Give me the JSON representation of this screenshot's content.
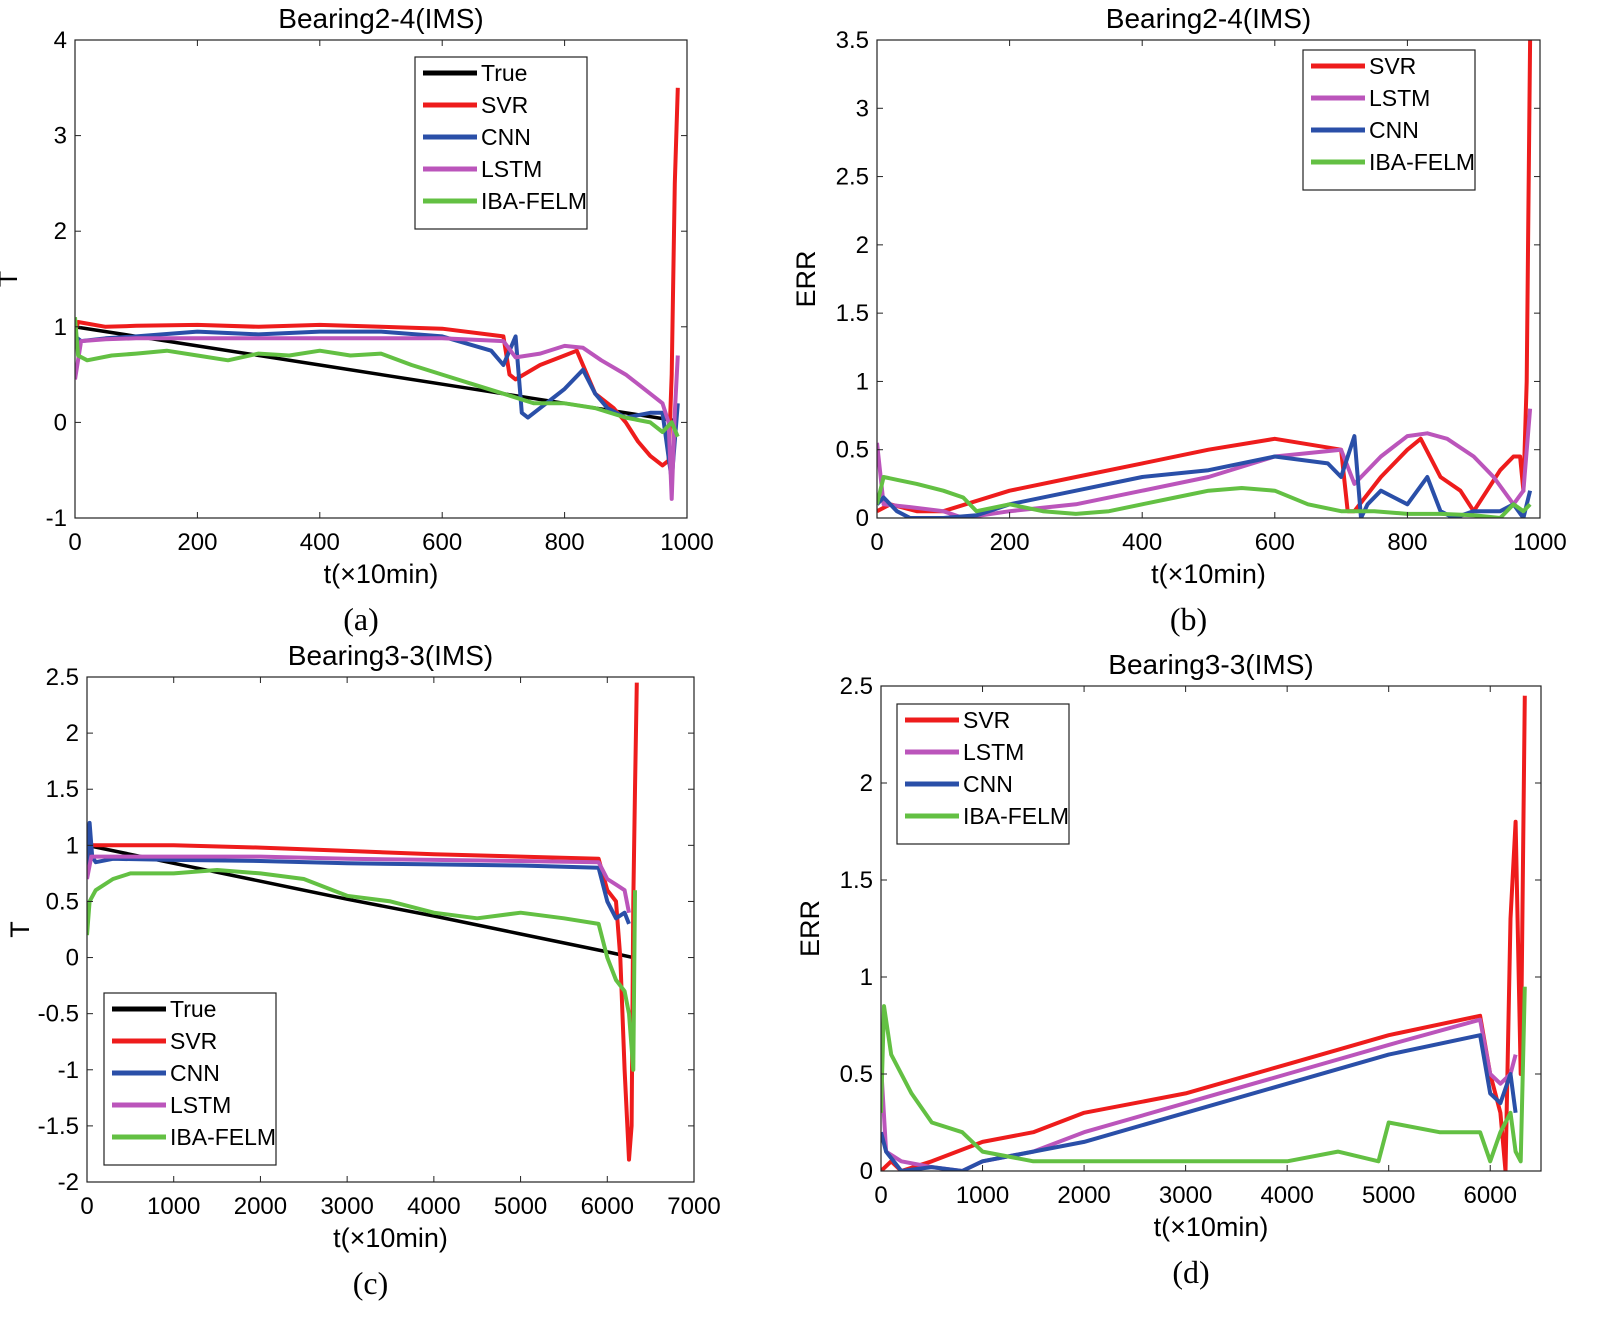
{
  "figure": {
    "colors": {
      "True": "#000000",
      "SVR": "#ee1c1c",
      "CNN": "#2a4fa8",
      "LSTM": "#bb55bb",
      "IBA-FELM": "#63c043"
    }
  },
  "chart_data": [
    {
      "id": "a",
      "caption": "(a)",
      "type": "line",
      "title": "Bearing2-4(IMS)",
      "xlabel": "t(×10min)",
      "ylabel": "T",
      "xlim": [
        0,
        1000
      ],
      "ylim": [
        -1,
        4
      ],
      "xticks": [
        0,
        200,
        400,
        600,
        800,
        1000
      ],
      "yticks": [
        -1,
        0,
        1,
        2,
        3,
        4
      ],
      "legend_position": "top-right",
      "grid": false,
      "series": [
        {
          "name": "True",
          "color": "#000000",
          "x": [
            0,
            200,
            400,
            600,
            800,
            980
          ],
          "y": [
            1.0,
            0.8,
            0.6,
            0.4,
            0.2,
            0.02
          ]
        },
        {
          "name": "SVR",
          "color": "#ee1c1c",
          "x": [
            0,
            5,
            50,
            100,
            200,
            300,
            400,
            500,
            600,
            700,
            710,
            720,
            760,
            800,
            820,
            850,
            880,
            900,
            920,
            940,
            960,
            970,
            975,
            980,
            985
          ],
          "y": [
            0.95,
            1.05,
            1.0,
            1.01,
            1.02,
            1.0,
            1.02,
            1.0,
            0.98,
            0.9,
            0.5,
            0.45,
            0.6,
            0.7,
            0.75,
            0.3,
            0.15,
            0.0,
            -0.2,
            -0.35,
            -0.45,
            -0.4,
            0.5,
            2.5,
            3.5
          ]
        },
        {
          "name": "CNN",
          "color": "#2a4fa8",
          "x": [
            0,
            10,
            50,
            100,
            200,
            300,
            400,
            500,
            600,
            680,
            700,
            720,
            730,
            740,
            760,
            780,
            800,
            830,
            850,
            870,
            900,
            940,
            960,
            975,
            985
          ],
          "y": [
            0.9,
            0.85,
            0.88,
            0.9,
            0.95,
            0.92,
            0.95,
            0.95,
            0.9,
            0.75,
            0.6,
            0.9,
            0.1,
            0.05,
            0.15,
            0.25,
            0.35,
            0.55,
            0.3,
            0.15,
            0.05,
            0.1,
            0.1,
            -0.6,
            0.2
          ]
        },
        {
          "name": "LSTM",
          "color": "#bb55bb",
          "x": [
            0,
            10,
            50,
            100,
            200,
            300,
            400,
            500,
            600,
            700,
            720,
            760,
            800,
            830,
            860,
            900,
            930,
            960,
            970,
            975,
            980,
            985
          ],
          "y": [
            0.45,
            0.85,
            0.87,
            0.88,
            0.88,
            0.88,
            0.88,
            0.88,
            0.88,
            0.85,
            0.68,
            0.72,
            0.8,
            0.78,
            0.65,
            0.5,
            0.35,
            0.2,
            0.0,
            -0.8,
            0.1,
            0.7
          ]
        },
        {
          "name": "IBA-FELM",
          "color": "#63c043",
          "x": [
            0,
            5,
            20,
            60,
            100,
            150,
            200,
            250,
            300,
            350,
            400,
            450,
            500,
            550,
            600,
            650,
            700,
            750,
            800,
            850,
            900,
            940,
            960,
            975,
            985
          ],
          "y": [
            1.1,
            0.7,
            0.65,
            0.7,
            0.72,
            0.75,
            0.7,
            0.65,
            0.72,
            0.7,
            0.75,
            0.7,
            0.72,
            0.6,
            0.5,
            0.4,
            0.3,
            0.2,
            0.2,
            0.15,
            0.05,
            0.0,
            -0.1,
            0.0,
            -0.15
          ]
        }
      ]
    },
    {
      "id": "b",
      "caption": "(b)",
      "type": "line",
      "title": "Bearing2-4(IMS)",
      "xlabel": "t(×10min)",
      "ylabel": "ERR",
      "xlim": [
        0,
        1000
      ],
      "ylim": [
        0,
        3.5
      ],
      "xticks": [
        0,
        200,
        400,
        600,
        800,
        1000
      ],
      "yticks": [
        0,
        0.5,
        1,
        1.5,
        2,
        2.5,
        3,
        3.5
      ],
      "legend_position": "top-right",
      "grid": false,
      "series": [
        {
          "name": "SVR",
          "color": "#ee1c1c",
          "x": [
            0,
            20,
            60,
            100,
            200,
            300,
            400,
            500,
            600,
            700,
            710,
            720,
            760,
            800,
            820,
            850,
            880,
            900,
            920,
            940,
            960,
            970,
            975,
            980,
            985
          ],
          "y": [
            0.05,
            0.1,
            0.05,
            0.05,
            0.2,
            0.3,
            0.4,
            0.5,
            0.58,
            0.5,
            0.05,
            0.05,
            0.3,
            0.5,
            0.58,
            0.3,
            0.2,
            0.05,
            0.2,
            0.35,
            0.45,
            0.45,
            0.2,
            1.0,
            3.5
          ]
        },
        {
          "name": "LSTM",
          "color": "#bb55bb",
          "x": [
            0,
            10,
            50,
            100,
            130,
            200,
            300,
            400,
            500,
            600,
            700,
            720,
            760,
            800,
            830,
            860,
            900,
            930,
            960,
            975,
            985
          ],
          "y": [
            0.55,
            0.1,
            0.08,
            0.05,
            0.0,
            0.05,
            0.1,
            0.2,
            0.3,
            0.45,
            0.5,
            0.25,
            0.45,
            0.6,
            0.62,
            0.58,
            0.45,
            0.3,
            0.1,
            0.2,
            0.8
          ]
        },
        {
          "name": "CNN",
          "color": "#2a4fa8",
          "x": [
            0,
            10,
            30,
            50,
            100,
            150,
            200,
            300,
            400,
            500,
            600,
            680,
            700,
            720,
            730,
            740,
            760,
            780,
            800,
            830,
            850,
            870,
            900,
            940,
            960,
            975,
            985
          ],
          "y": [
            0.1,
            0.15,
            0.05,
            0.0,
            0.0,
            0.02,
            0.1,
            0.2,
            0.3,
            0.35,
            0.45,
            0.4,
            0.3,
            0.6,
            0.0,
            0.1,
            0.2,
            0.15,
            0.1,
            0.3,
            0.05,
            0.0,
            0.05,
            0.05,
            0.1,
            0.0,
            0.2
          ]
        },
        {
          "name": "IBA-FELM",
          "color": "#63c043",
          "x": [
            0,
            10,
            30,
            60,
            100,
            130,
            150,
            200,
            250,
            300,
            350,
            400,
            450,
            500,
            550,
            600,
            650,
            700,
            750,
            800,
            850,
            900,
            940,
            960,
            975,
            985
          ],
          "y": [
            0.1,
            0.3,
            0.28,
            0.25,
            0.2,
            0.15,
            0.05,
            0.1,
            0.05,
            0.03,
            0.05,
            0.1,
            0.15,
            0.2,
            0.22,
            0.2,
            0.1,
            0.05,
            0.05,
            0.03,
            0.03,
            0.02,
            0.0,
            0.1,
            0.05,
            0.1
          ]
        }
      ]
    },
    {
      "id": "c",
      "caption": "(c)",
      "type": "line",
      "title": "Bearing3-3(IMS)",
      "xlabel": "t(×10min)",
      "ylabel": "T",
      "xlim": [
        0,
        7000
      ],
      "ylim": [
        -2,
        2.5
      ],
      "xticks": [
        0,
        1000,
        2000,
        3000,
        4000,
        5000,
        6000,
        7000
      ],
      "yticks": [
        -2,
        -1.5,
        -1,
        -0.5,
        0,
        0.5,
        1,
        1.5,
        2,
        2.5
      ],
      "legend_position": "bottom-left",
      "grid": false,
      "series": [
        {
          "name": "True",
          "color": "#000000",
          "x": [
            0,
            1000,
            2000,
            3000,
            4000,
            5000,
            6000,
            6300
          ],
          "y": [
            1.0,
            0.84,
            0.68,
            0.52,
            0.37,
            0.21,
            0.05,
            0.0
          ]
        },
        {
          "name": "SVR",
          "color": "#ee1c1c",
          "x": [
            0,
            50,
            200,
            1000,
            2000,
            3000,
            4000,
            5000,
            5900,
            6000,
            6100,
            6150,
            6200,
            6250,
            6280,
            6300,
            6320,
            6340
          ],
          "y": [
            0.8,
            1.0,
            1.0,
            1.0,
            0.98,
            0.95,
            0.92,
            0.9,
            0.88,
            0.6,
            0.5,
            0.0,
            -1.0,
            -1.8,
            -1.5,
            0.5,
            1.5,
            2.45
          ]
        },
        {
          "name": "CNN",
          "color": "#2a4fa8",
          "x": [
            0,
            30,
            60,
            100,
            300,
            1000,
            2000,
            3000,
            4000,
            5000,
            5900,
            6000,
            6100,
            6200,
            6250
          ],
          "y": [
            0.8,
            1.2,
            0.9,
            0.85,
            0.88,
            0.87,
            0.86,
            0.84,
            0.83,
            0.82,
            0.8,
            0.5,
            0.35,
            0.4,
            0.3
          ]
        },
        {
          "name": "LSTM",
          "color": "#bb55bb",
          "x": [
            0,
            50,
            200,
            1000,
            2000,
            3000,
            4000,
            5000,
            5900,
            6000,
            6100,
            6200,
            6250
          ],
          "y": [
            0.7,
            0.9,
            0.9,
            0.9,
            0.9,
            0.88,
            0.87,
            0.86,
            0.85,
            0.7,
            0.65,
            0.6,
            0.4
          ]
        },
        {
          "name": "IBA-FELM",
          "color": "#63c043",
          "x": [
            0,
            30,
            100,
            300,
            500,
            1000,
            1500,
            2000,
            2500,
            3000,
            3500,
            4000,
            4500,
            5000,
            5500,
            5900,
            6000,
            6100,
            6200,
            6250,
            6300,
            6320
          ],
          "y": [
            0.2,
            0.5,
            0.6,
            0.7,
            0.75,
            0.75,
            0.78,
            0.75,
            0.7,
            0.55,
            0.5,
            0.4,
            0.35,
            0.4,
            0.35,
            0.3,
            0.0,
            -0.2,
            -0.3,
            -0.5,
            -1.0,
            0.6
          ]
        }
      ]
    },
    {
      "id": "d",
      "caption": "(d)",
      "type": "line",
      "title": "Bearing3-3(IMS)",
      "xlabel": "t(×10min)",
      "ylabel": "ERR",
      "xlim": [
        0,
        6500
      ],
      "ylim": [
        0,
        2.5
      ],
      "xticks": [
        0,
        1000,
        2000,
        3000,
        4000,
        5000,
        6000
      ],
      "yticks": [
        0,
        0.5,
        1,
        1.5,
        2,
        2.5
      ],
      "legend_position": "top-left",
      "grid": false,
      "series": [
        {
          "name": "SVR",
          "color": "#ee1c1c",
          "x": [
            0,
            100,
            200,
            500,
            1000,
            1500,
            2000,
            3000,
            4000,
            5000,
            5900,
            6000,
            6100,
            6150,
            6200,
            6250,
            6300,
            6340
          ],
          "y": [
            0.0,
            0.05,
            0.0,
            0.05,
            0.15,
            0.2,
            0.3,
            0.4,
            0.55,
            0.7,
            0.8,
            0.5,
            0.3,
            0.0,
            1.3,
            1.8,
            0.5,
            2.45
          ]
        },
        {
          "name": "LSTM",
          "color": "#bb55bb",
          "x": [
            0,
            50,
            200,
            500,
            800,
            1000,
            1500,
            2000,
            3000,
            4000,
            5000,
            5900,
            6000,
            6100,
            6200,
            6250
          ],
          "y": [
            0.55,
            0.1,
            0.05,
            0.02,
            0.0,
            0.05,
            0.1,
            0.2,
            0.35,
            0.5,
            0.65,
            0.78,
            0.5,
            0.45,
            0.5,
            0.6
          ]
        },
        {
          "name": "CNN",
          "color": "#2a4fa8",
          "x": [
            0,
            50,
            200,
            500,
            800,
            1000,
            1500,
            2000,
            3000,
            4000,
            5000,
            5900,
            6000,
            6100,
            6200,
            6250
          ],
          "y": [
            0.2,
            0.1,
            0.0,
            0.02,
            0.0,
            0.05,
            0.1,
            0.15,
            0.3,
            0.45,
            0.6,
            0.7,
            0.4,
            0.35,
            0.5,
            0.3
          ]
        },
        {
          "name": "IBA-FELM",
          "color": "#63c043",
          "x": [
            0,
            30,
            100,
            300,
            500,
            800,
            1000,
            1500,
            2000,
            3000,
            4000,
            4500,
            4900,
            5000,
            5500,
            5900,
            6000,
            6100,
            6200,
            6250,
            6300,
            6340
          ],
          "y": [
            0.3,
            0.85,
            0.6,
            0.4,
            0.25,
            0.2,
            0.1,
            0.05,
            0.05,
            0.05,
            0.05,
            0.1,
            0.05,
            0.25,
            0.2,
            0.2,
            0.05,
            0.2,
            0.3,
            0.1,
            0.05,
            0.95
          ]
        }
      ]
    }
  ]
}
